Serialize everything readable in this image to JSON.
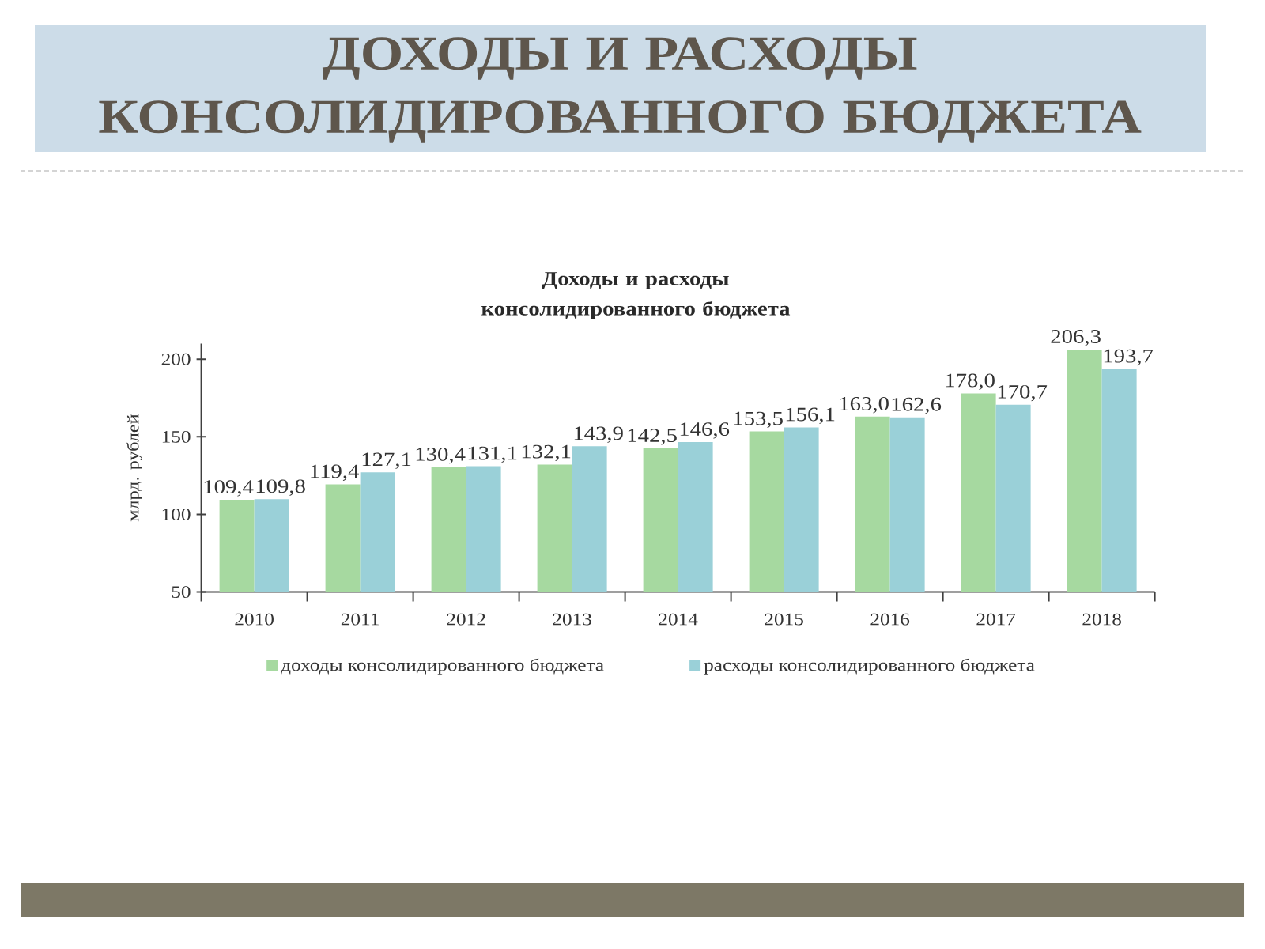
{
  "chart_data": {
    "type": "bar",
    "title": "ДОХОДЫ И РАСХОДЫ КОНСОЛИДИРОВАННОГО БЮДЖЕТА",
    "subtitle": "Доходы и расходы консолидированного бюджета",
    "ylabel": "млрд. рублей",
    "categories": [
      "2010",
      "2011",
      "2012",
      "2013",
      "2014",
      "2015",
      "2016",
      "2017",
      "2018"
    ],
    "series": [
      {
        "name": "доходы консолидированного бюджета",
        "color": "#a6d9a0",
        "values": [
          109.4,
          119.4,
          130.4,
          132.1,
          142.5,
          153.5,
          163.0,
          178.0,
          206.3
        ],
        "value_labels": [
          "109,4",
          "119,4",
          "130,4",
          "132,1",
          "142,5",
          "153,5",
          "163,0",
          "178,0",
          "206,3"
        ]
      },
      {
        "name": "расходы консолидированного бюджета",
        "color": "#9ad0d8",
        "values": [
          109.8,
          127.1,
          131.1,
          143.9,
          146.6,
          156.1,
          162.6,
          170.7,
          193.7
        ],
        "value_labels": [
          "109,8",
          "127,1",
          "131,1",
          "143,9",
          "146,6",
          "156,1",
          "162,6",
          "170,7",
          "193,7"
        ]
      }
    ],
    "ylim": [
      50,
      210
    ],
    "yticks": [
      50,
      100,
      150,
      200
    ],
    "legend": "bottom"
  }
}
